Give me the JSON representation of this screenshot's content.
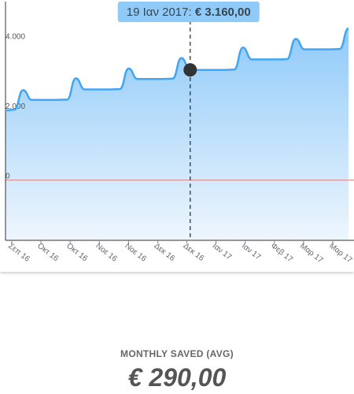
{
  "chart_data": {
    "type": "area",
    "ylim": [
      -2000,
      4600
    ],
    "y_ticks": [
      {
        "value": 4000,
        "label": "4.000"
      },
      {
        "value": 2000,
        "label": "2.000"
      },
      {
        "value": 0,
        "label": "0"
      }
    ],
    "x_ticks": [
      "Σεπ 16",
      "Οκτ 16",
      "Οκτ 16",
      "Νοε 16",
      "Νοε 16",
      "Δεκ 16",
      "Δεκ 16",
      "Ιαν 17",
      "Ιαν 17",
      "Φεβ 17",
      "Μαρ 17",
      "Μαρ 17"
    ],
    "series": [
      {
        "values": [
          2000,
          2020,
          2580,
          2300,
          2300,
          2300,
          2300,
          2310,
          2920,
          2600,
          2600,
          2600,
          2600,
          2610,
          3200,
          2900,
          2900,
          2900,
          2900,
          2910,
          3500,
          3160,
          3160,
          3160,
          3160,
          3160,
          3170,
          3800,
          3460,
          3460,
          3460,
          3460,
          3470,
          4050,
          3750,
          3750,
          3750,
          3750,
          3760,
          4350
        ]
      }
    ],
    "highlight": {
      "index": 21,
      "label": "19 Ιαν 2017: ",
      "value_label": "€ 3.160,00"
    },
    "reference_line": {
      "value": 0
    },
    "grid": false,
    "colors": {
      "line": "#42a5f5",
      "fill_top": "#90caf9",
      "fill_bottom": "#eef6fd",
      "marker": "#333333",
      "reference": "#d48a8a",
      "tooltip_bg": "#90caf9",
      "tooltip_text": "#37474f"
    }
  },
  "summary": {
    "label": "MONTHLY SAVED (AVG)",
    "value": "€ 290,00"
  }
}
